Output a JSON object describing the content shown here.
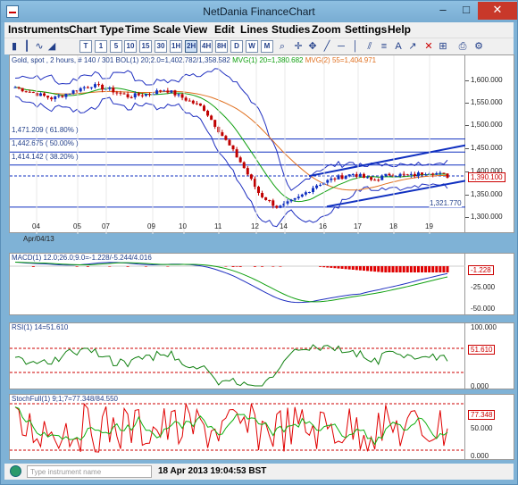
{
  "window": {
    "title": "NetDania FinanceChart",
    "minimize": "–",
    "maximize": "□",
    "close": "✕"
  },
  "menu": [
    "Instruments",
    "Chart Type",
    "Time Scale",
    "View",
    "Edit",
    "Lines",
    "Studies",
    "Zoom",
    "Settings",
    "Help"
  ],
  "toolbar": {
    "timeframes": [
      "T",
      "1",
      "5",
      "10",
      "15",
      "30",
      "1H",
      "2H",
      "4H",
      "8H",
      "D",
      "W",
      "M"
    ],
    "active_timeframe": "2H"
  },
  "price_panel": {
    "legend": {
      "instrument": "Gold, spot , 2 hours, # 140 / 301",
      "bol": "BOL(1) 20;2.0=1,402.782/1,358.582",
      "mvg1": "MVG(1) 20=1,380.682",
      "mvg2": "MVG(2) 55=1,404.971"
    },
    "fib_labels": [
      "1,471.209 ( 61.80% )",
      "1,442.675 ( 50.00% )",
      "1,414.142 ( 38.20% )"
    ],
    "low_label": "1,321.770",
    "y_ticks": [
      "1,600.000",
      "1,550.000",
      "1,500.000",
      "1,450.000",
      "1,400.000",
      "1,350.000",
      "1,300.000"
    ],
    "current_tag": "1,390.100",
    "x_ticks": [
      "04",
      "05",
      "07",
      "09",
      "10",
      "11",
      "12",
      "14",
      "16",
      "17",
      "18",
      "19"
    ],
    "date_label": "Apr/04/13"
  },
  "macd_panel": {
    "legend": "MACD(1) 12.0;26.0;9.0=-1.228/-5.244/4.016",
    "y_ticks": [
      "-25.000",
      "-50.000"
    ],
    "current_tag": "-1.228"
  },
  "rsi_panel": {
    "legend": "RSI(1) 14=51.610",
    "y_ticks": [
      "100.000",
      "0.000"
    ],
    "current_tag": "51.610"
  },
  "stoch_panel": {
    "legend": "StochFull(1) 9;1;7=77.348/84.550",
    "y_ticks": [
      "50.000",
      "0.000"
    ],
    "current_tag": "77.348"
  },
  "status": {
    "search_placeholder": "Type instrument name",
    "timestamp": "18 Apr 2013 19:04:53 BST"
  },
  "colors": {
    "price_up": "#1030c0",
    "bol": "#2030c0",
    "mvg20": "#10a010",
    "mvg55": "#e07020",
    "macd_hist": "#e00000",
    "rsi": "#108010",
    "stoch_k": "#e00000",
    "stoch_d": "#10b010",
    "channel": "#1030c0"
  },
  "chart_data": {
    "type": "line",
    "instrument": "Gold, spot",
    "approx_close_path": [
      1585,
      1572,
      1560,
      1575,
      1590,
      1580,
      1565,
      1570,
      1580,
      1560,
      1540,
      1480,
      1420,
      1350,
      1320,
      1340,
      1370,
      1385,
      1395,
      1380,
      1395,
      1390,
      1400,
      1390
    ],
    "last_close": 1390.1
  }
}
